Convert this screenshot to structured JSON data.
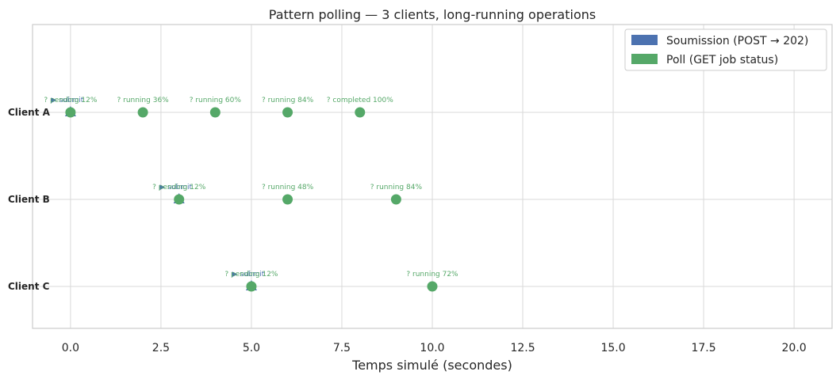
{
  "chart_data": {
    "type": "scatter",
    "title": "Pattern polling — 3 clients, long-running operations",
    "xlabel": "Temps simulé (secondes)",
    "ylabel": "",
    "xlim": [
      -1.05,
      21.05
    ],
    "x_ticks": [
      "0.0",
      "2.5",
      "5.0",
      "7.5",
      "10.0",
      "12.5",
      "15.0",
      "17.5",
      "20.0"
    ],
    "x_tick_values": [
      0,
      2.5,
      5,
      7.5,
      10,
      12.5,
      15,
      17.5,
      20
    ],
    "grid": true,
    "legend_position": "top-right",
    "legend": [
      {
        "label": "Soumission (POST → 202)",
        "color": "#4c72b0"
      },
      {
        "label": "Poll (GET job status)",
        "color": "#55a868"
      }
    ],
    "categories": [
      "Client A",
      "Client B",
      "Client C"
    ],
    "submissions": [
      {
        "client": "Client A",
        "x": 0,
        "label": "▶ submit"
      },
      {
        "client": "Client B",
        "x": 3,
        "label": "▶ submit"
      },
      {
        "client": "Client C",
        "x": 5,
        "label": "▶ submit"
      }
    ],
    "polls": [
      {
        "client": "Client A",
        "x": 0,
        "label": "? pending 12%"
      },
      {
        "client": "Client A",
        "x": 2,
        "label": "? running 36%"
      },
      {
        "client": "Client A",
        "x": 4,
        "label": "? running 60%"
      },
      {
        "client": "Client A",
        "x": 6,
        "label": "? running 84%"
      },
      {
        "client": "Client A",
        "x": 8,
        "label": "? completed 100%"
      },
      {
        "client": "Client B",
        "x": 3,
        "label": "? pending 12%"
      },
      {
        "client": "Client B",
        "x": 6,
        "label": "? running 48%"
      },
      {
        "client": "Client B",
        "x": 9,
        "label": "? running 84%"
      },
      {
        "client": "Client C",
        "x": 5,
        "label": "? pending 12%"
      },
      {
        "client": "Client C",
        "x": 10,
        "label": "? running 72%"
      }
    ],
    "colors": {
      "submit": "#4c72b0",
      "poll": "#55a868",
      "submit_text": "#4c72b0",
      "poll_text": "#55a868"
    }
  }
}
